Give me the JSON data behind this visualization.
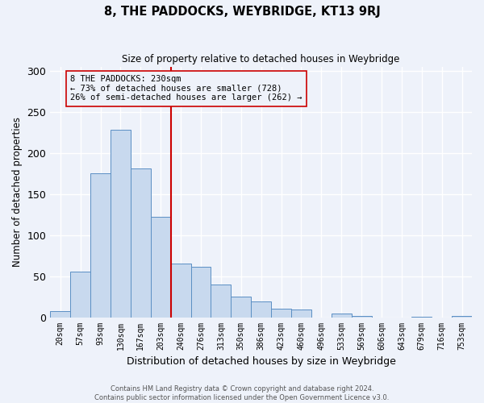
{
  "title": "8, THE PADDOCKS, WEYBRIDGE, KT13 9RJ",
  "subtitle": "Size of property relative to detached houses in Weybridge",
  "xlabel": "Distribution of detached houses by size in Weybridge",
  "ylabel": "Number of detached properties",
  "bar_labels": [
    "20sqm",
    "57sqm",
    "93sqm",
    "130sqm",
    "167sqm",
    "203sqm",
    "240sqm",
    "276sqm",
    "313sqm",
    "350sqm",
    "386sqm",
    "423sqm",
    "460sqm",
    "496sqm",
    "533sqm",
    "569sqm",
    "606sqm",
    "643sqm",
    "679sqm",
    "716sqm",
    "753sqm"
  ],
  "bar_values": [
    7,
    56,
    175,
    228,
    181,
    122,
    65,
    61,
    40,
    25,
    19,
    10,
    9,
    0,
    4,
    2,
    0,
    0,
    1,
    0,
    2
  ],
  "bar_color": "#c8d9ee",
  "bar_edge_color": "#5b8fc4",
  "background_color": "#eef2fa",
  "grid_color": "#ffffff",
  "vline_color": "#cc0000",
  "vline_index": 6,
  "annotation_text": "8 THE PADDOCKS: 230sqm\n← 73% of detached houses are smaller (728)\n26% of semi-detached houses are larger (262) →",
  "annotation_box_edgecolor": "#cc0000",
  "ylim": [
    0,
    305
  ],
  "yticks": [
    0,
    50,
    100,
    150,
    200,
    250,
    300
  ],
  "footer_line1": "Contains HM Land Registry data © Crown copyright and database right 2024.",
  "footer_line2": "Contains public sector information licensed under the Open Government Licence v3.0."
}
